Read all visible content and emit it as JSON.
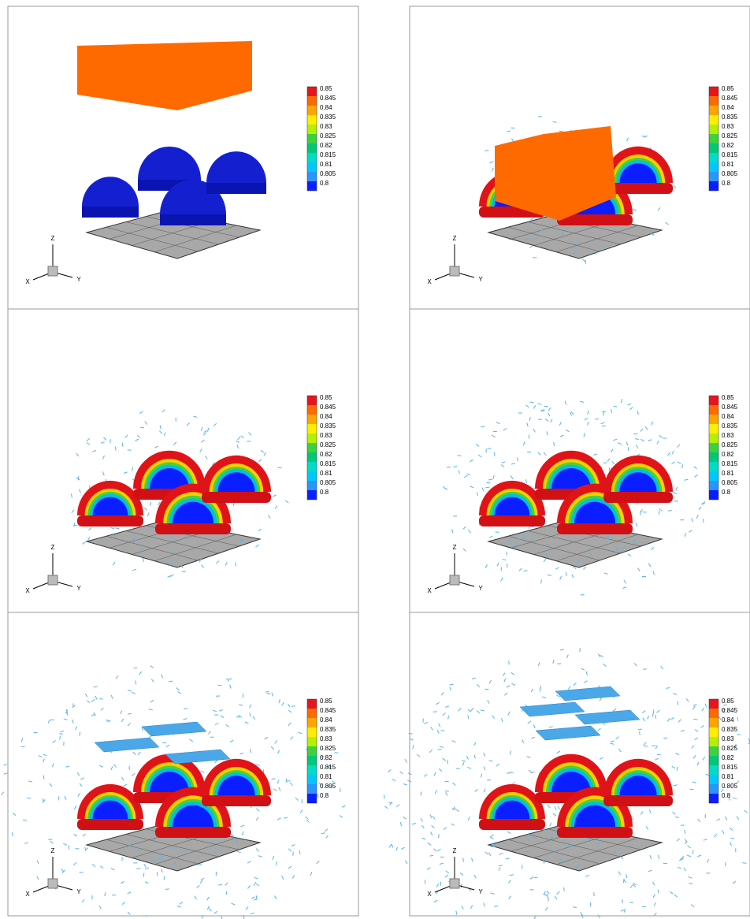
{
  "colorbar": {
    "levels": [
      0.85,
      0.845,
      0.84,
      0.835,
      0.83,
      0.825,
      0.82,
      0.815,
      0.81,
      0.805,
      0.8
    ],
    "colors": [
      "#e8141c",
      "#ff6a00",
      "#ffa500",
      "#ffee00",
      "#b4f000",
      "#3cd23c",
      "#00c878",
      "#00dcc8",
      "#00c8ff",
      "#2896ff",
      "#0a1eff"
    ]
  },
  "axes": {
    "x": "X",
    "y": "Y",
    "z": "Z"
  }
}
